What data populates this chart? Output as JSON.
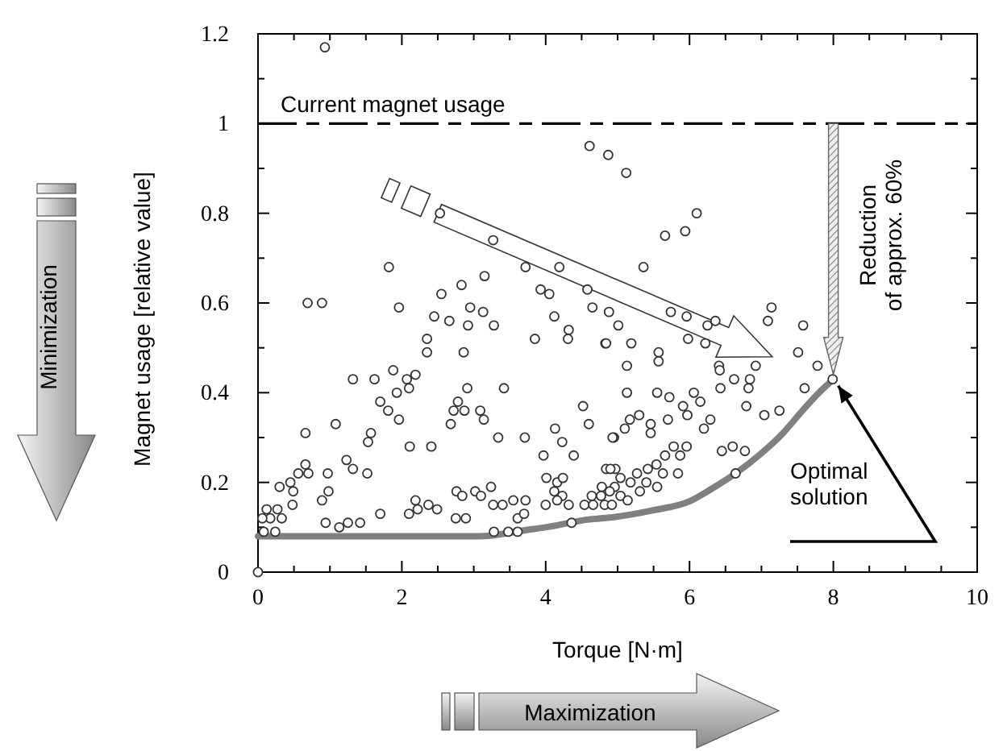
{
  "chart_data": {
    "type": "scatter",
    "xlabel": "Torque [N·m]",
    "ylabel": "Magnet usage [relative value]",
    "xlim": [
      0,
      10
    ],
    "ylim": [
      0,
      1.2
    ],
    "xticks": [
      0,
      {
        "value": 0.5,
        "label": null
      },
      2,
      {
        "value": 1,
        "label": null
      },
      {
        "value": 1.5,
        "label": null
      },
      {
        "value": 2.5,
        "label": null
      },
      {
        "value": 3,
        "label": null
      },
      {
        "value": 3.5,
        "label": null
      },
      4,
      {
        "value": 4.5,
        "label": null
      },
      {
        "value": 5,
        "label": null
      },
      {
        "value": 5.5,
        "label": null
      },
      6,
      {
        "value": 6.5,
        "label": null
      },
      {
        "value": 7,
        "label": null
      },
      {
        "value": 7.5,
        "label": null
      },
      8,
      {
        "value": 8.5,
        "label": null
      },
      {
        "value": 9,
        "label": null
      },
      {
        "value": 9.5,
        "label": null
      },
      10
    ],
    "yticks": [
      0,
      0.2,
      0.4,
      0.6,
      0.8,
      1,
      1.2,
      {
        "value": 0.1,
        "label": null
      },
      {
        "value": 0.3,
        "label": null
      },
      {
        "value": 0.5,
        "label": null
      },
      {
        "value": 0.7,
        "label": null
      },
      {
        "value": 0.9,
        "label": null
      },
      {
        "value": 1.1,
        "label": null
      }
    ],
    "grid": false,
    "series": [
      {
        "marker": "circle",
        "color": "#333333",
        "x": [
          0.93,
          0.69,
          0.89,
          1.82,
          1.96,
          2.53,
          3.27,
          3.72,
          4.19,
          3.15,
          2.83,
          2.55,
          2.95,
          3.13,
          2.45,
          2.66,
          2.92,
          3.28,
          2.35,
          2.35,
          2.86,
          3.93,
          4.05,
          4.12,
          4.32,
          4.31,
          3.85,
          4.58,
          4.65,
          4.83,
          1.32,
          1.62,
          1.88,
          1.93,
          2.07,
          2.19,
          2.1,
          3.42,
          2.91,
          1.7,
          1.81,
          1.96,
          2.78,
          2.72,
          2.87,
          2.68,
          3.09,
          3.14,
          1.08,
          0.66,
          1.57,
          1.53,
          2.11,
          2.41,
          3.34,
          3.71,
          4.13,
          4.23,
          4.39,
          3.97,
          4.52,
          4.6,
          1.23,
          1.32,
          1.52,
          0.97,
          0.66,
          0.56,
          0.7,
          0.45,
          0.3,
          0.49,
          0.98,
          0.89,
          0.12,
          0.27,
          0.48,
          0.33,
          0.17,
          0.06,
          0.08,
          0.24,
          0.94,
          1.13,
          1.25,
          1.42,
          1.7,
          2.1,
          2.19,
          2.22,
          2.37,
          2.49,
          2.76,
          2.84,
          2.75,
          2.89,
          3.02,
          3.1,
          3.24,
          3.27,
          3.4,
          3.55,
          3.72,
          3.61,
          3.7,
          3.28,
          3.48,
          3.61,
          4.0,
          4.01,
          4.16,
          4.24,
          4.12,
          4.23,
          4.32,
          4.16,
          4.36,
          4.54,
          4.64,
          4.78,
          4.82,
          4.84,
          4.97,
          4.95,
          0,
          4.61,
          4.87,
          5.12,
          6.1,
          5.66,
          5.94,
          5.36,
          4.88,
          5.01,
          4.84,
          5.19,
          5.74,
          5.96,
          6.25,
          6.36,
          5.98,
          6.22,
          7.14,
          7.09,
          7.58,
          5.57,
          5.57,
          5.13,
          6.41,
          6.42,
          6.62,
          6.43,
          6.92,
          6.84,
          6.82,
          7.51,
          7.78,
          7.6,
          7.99,
          5.13,
          5.55,
          5.72,
          6.06,
          5.91,
          6.15,
          5.97,
          6.29,
          6.2,
          5.3,
          5.17,
          5.1,
          4.93,
          5.46,
          5.46,
          5.7,
          6.79,
          7.04,
          7.25,
          5.78,
          5.96,
          5.87,
          5.66,
          5.54,
          6.45,
          6.6,
          6.77,
          5.42,
          5.27,
          5.04,
          4.9,
          5.63,
          5.4,
          5.18,
          4.96,
          4.77,
          5.04,
          5.31,
          5.55,
          5.84,
          4.66,
          4.92,
          5.14,
          4.89,
          6.64
        ],
        "values": [
          1.17,
          0.6,
          0.6,
          0.68,
          0.59,
          0.8,
          0.74,
          0.68,
          0.68,
          0.66,
          0.64,
          0.62,
          0.59,
          0.58,
          0.57,
          0.56,
          0.55,
          0.55,
          0.52,
          0.49,
          0.49,
          0.63,
          0.62,
          0.57,
          0.54,
          0.52,
          0.52,
          0.63,
          0.59,
          0.51,
          0.43,
          0.43,
          0.45,
          0.4,
          0.43,
          0.44,
          0.41,
          0.41,
          0.41,
          0.38,
          0.36,
          0.34,
          0.38,
          0.36,
          0.36,
          0.33,
          0.36,
          0.34,
          0.33,
          0.31,
          0.31,
          0.29,
          0.28,
          0.28,
          0.3,
          0.3,
          0.32,
          0.29,
          0.26,
          0.26,
          0.37,
          0.33,
          0.25,
          0.23,
          0.22,
          0.22,
          0.24,
          0.22,
          0.22,
          0.2,
          0.19,
          0.18,
          0.18,
          0.16,
          0.14,
          0.14,
          0.15,
          0.12,
          0.12,
          0.12,
          0.09,
          0.09,
          0.11,
          0.1,
          0.11,
          0.11,
          0.13,
          0.13,
          0.16,
          0.14,
          0.15,
          0.14,
          0.18,
          0.17,
          0.12,
          0.12,
          0.18,
          0.17,
          0.19,
          0.15,
          0.15,
          0.16,
          0.16,
          0.12,
          0.13,
          0.09,
          0.09,
          0.09,
          0.15,
          0.21,
          0.2,
          0.21,
          0.18,
          0.17,
          0.15,
          0.16,
          0.11,
          0.15,
          0.17,
          0.19,
          0.15,
          0.23,
          0.23,
          0.3,
          0,
          0.95,
          0.93,
          0.89,
          0.8,
          0.75,
          0.76,
          0.68,
          0.58,
          0.55,
          0.51,
          0.51,
          0.58,
          0.57,
          0.55,
          0.56,
          0.52,
          0.51,
          0.59,
          0.56,
          0.55,
          0.49,
          0.47,
          0.46,
          0.46,
          0.45,
          0.43,
          0.41,
          0.46,
          0.43,
          0.41,
          0.49,
          0.46,
          0.41,
          0.43,
          0.4,
          0.4,
          0.39,
          0.4,
          0.37,
          0.38,
          0.35,
          0.34,
          0.32,
          0.35,
          0.34,
          0.32,
          0.3,
          0.33,
          0.31,
          0.34,
          0.37,
          0.35,
          0.36,
          0.28,
          0.28,
          0.26,
          0.26,
          0.24,
          0.27,
          0.28,
          0.27,
          0.23,
          0.22,
          0.21,
          0.23,
          0.22,
          0.2,
          0.2,
          0.19,
          0.17,
          0.17,
          0.18,
          0.19,
          0.22,
          0.15,
          0.15,
          0.16,
          0.18,
          0.22
        ]
      },
      {
        "type": "line",
        "marker": "none",
        "color": "#808080",
        "x": [
          0,
          1,
          2,
          3,
          3.2,
          3.7,
          4,
          4.58,
          4.97,
          5.5,
          6,
          6.3,
          6.64,
          7,
          7.3,
          7.57,
          7.8,
          8
        ],
        "values": [
          0.08,
          0.08,
          0.08,
          0.08,
          0.081,
          0.093,
          0.1,
          0.117,
          0.123,
          0.138,
          0.158,
          0.185,
          0.22,
          0.265,
          0.31,
          0.36,
          0.4,
          0.43
        ]
      }
    ],
    "ref_lines": [
      {
        "axis": "y",
        "value": 1,
        "label": "Current magnet usage",
        "color": "#000000",
        "line_style": "dashed"
      }
    ],
    "annotations": [
      "Reduction\nof approx. 60%",
      "Optimal\nsolution",
      "Minimization",
      "Maximization"
    ]
  }
}
